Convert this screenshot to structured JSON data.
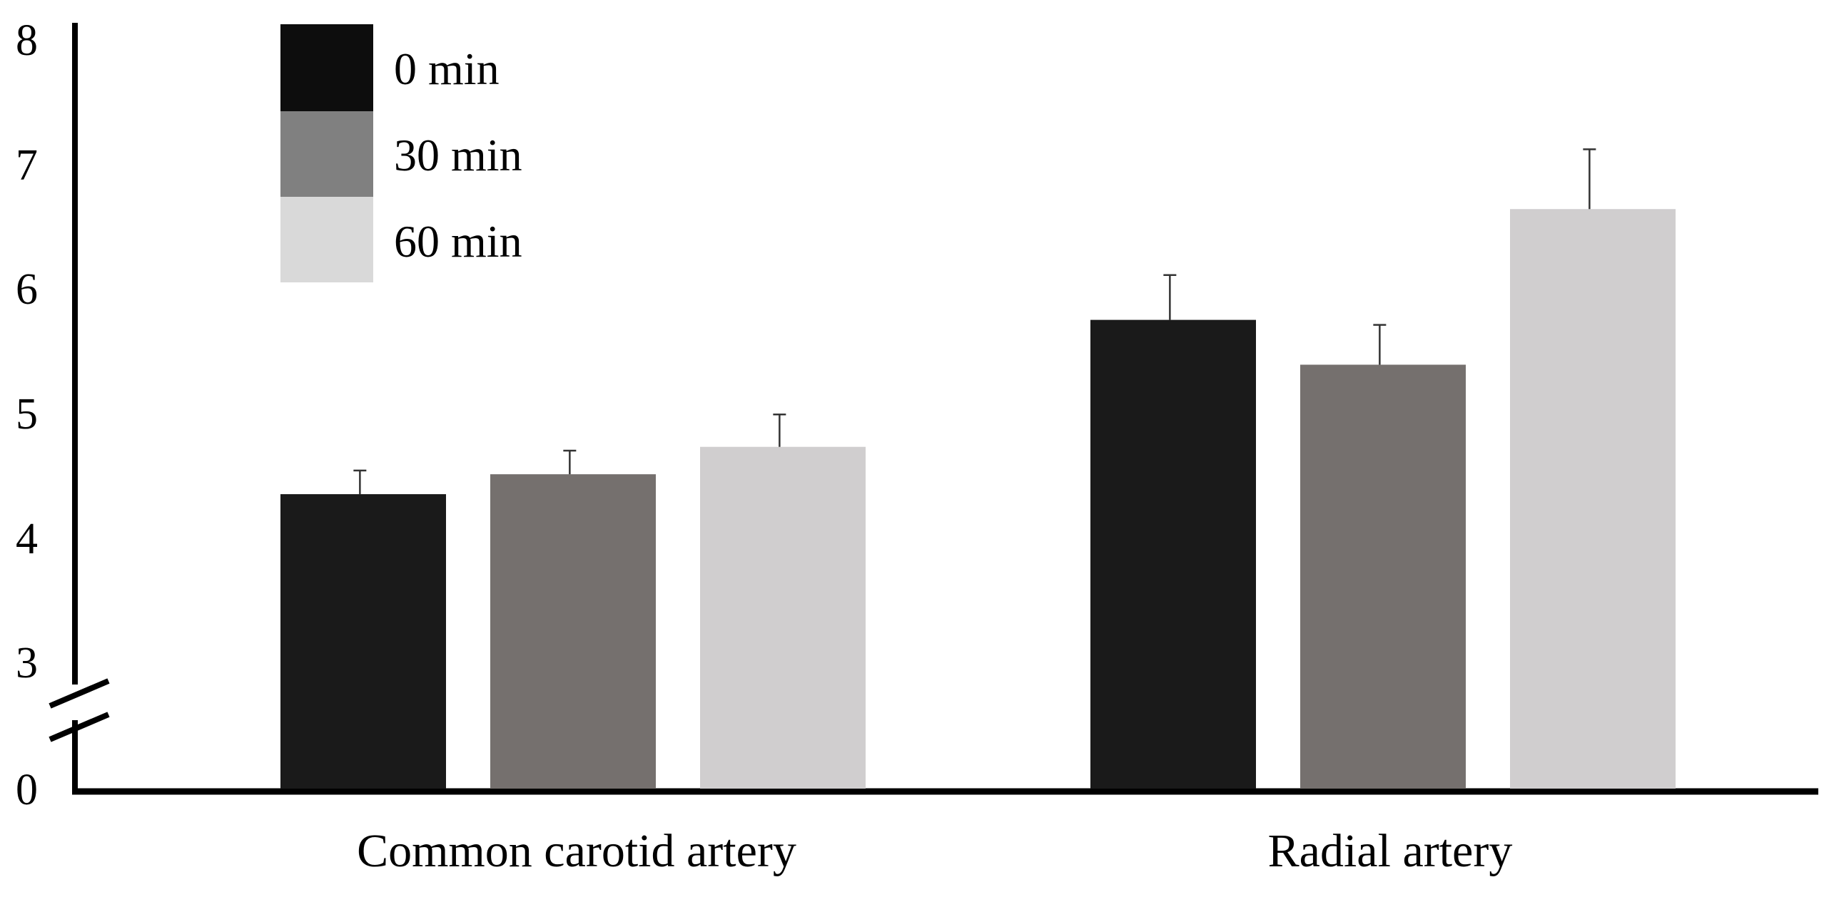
{
  "chart_data": {
    "type": "bar",
    "title": "",
    "xlabel": "",
    "ylabel": "",
    "categories": [
      "Common carotid artery",
      "Radial artery"
    ],
    "series": [
      {
        "name": "0 min",
        "values": [
          4.38,
          5.78
        ],
        "errors": [
          0.19,
          0.36
        ],
        "color": "#1a1a1a"
      },
      {
        "name": "30 min",
        "values": [
          4.54,
          5.42
        ],
        "errors": [
          0.19,
          0.32
        ],
        "color": "#75706e"
      },
      {
        "name": "60 min",
        "values": [
          4.76,
          6.67
        ],
        "errors": [
          0.26,
          0.48
        ],
        "color": "#d0cecf"
      }
    ],
    "legend_colors": [
      "#0d0d0d",
      "#808080",
      "#d9d9d9"
    ],
    "y_ticks": [
      "0",
      "3",
      "4",
      "5",
      "6",
      "7",
      "8"
    ],
    "ylim": [
      0,
      8
    ],
    "axis_break": {
      "between": [
        0,
        3
      ]
    },
    "grid": false,
    "legend_position": "top-left"
  }
}
